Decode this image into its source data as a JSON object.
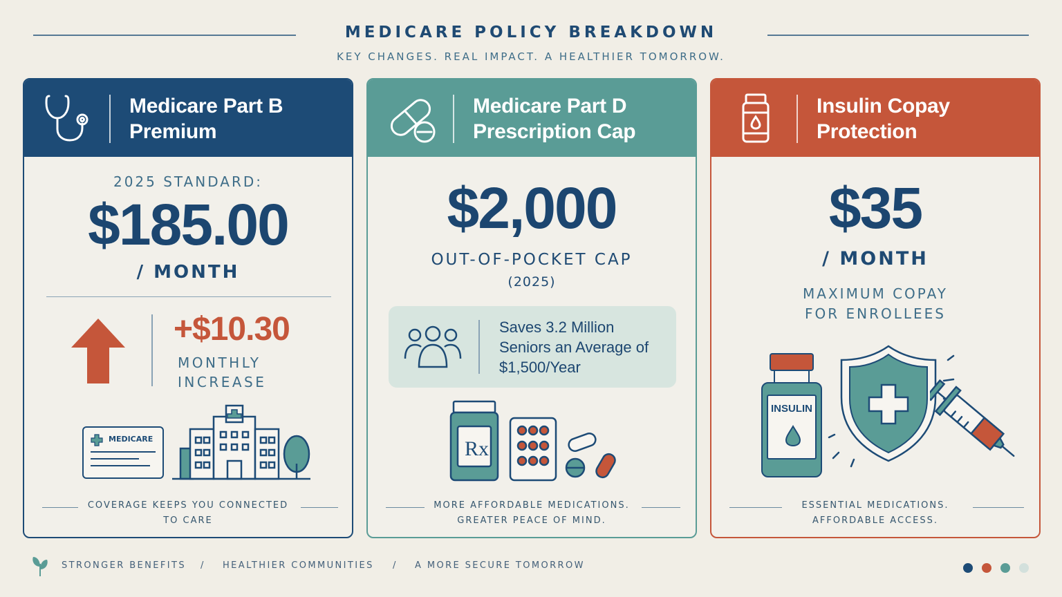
{
  "header": {
    "title": "MEDICARE POLICY BREAKDOWN",
    "subtitle": "KEY CHANGES. REAL IMPACT. A HEALTHIER TOMORROW."
  },
  "cards": [
    {
      "title_line1": "Medicare Part B",
      "title_line2": "Premium",
      "icon": "stethoscope-icon",
      "color": "#1d4b76",
      "label": "2025 STANDARD:",
      "value": "$185.00",
      "unit": "/ MONTH",
      "change_value": "+$10.30",
      "change_label_line1": "MONTHLY",
      "change_label_line2": "INCREASE",
      "card_text": "MEDICARE",
      "footer_line1": "COVERAGE KEEPS YOU CONNECTED",
      "footer_line2": "TO CARE"
    },
    {
      "title_line1": "Medicare Part D",
      "title_line2": "Prescription Cap",
      "icon": "pill-icon",
      "color": "#5a9c96",
      "value": "$2,000",
      "unit": "OUT-OF-POCKET CAP",
      "unit_line2": "(2025)",
      "info_line1": "Saves 3.2 Million",
      "info_line2": "Seniors an Average of",
      "info_line3": "$1,500/Year",
      "footer_line1": "MORE AFFORDABLE MEDICATIONS.",
      "footer_line2": "GREATER PEACE OF MIND."
    },
    {
      "title_line1": "Insulin Copay",
      "title_line2": "Protection",
      "icon": "medicine-bottle-icon",
      "color": "#c5563a",
      "value": "$35",
      "unit": "/ MONTH",
      "desc_line1": "MAXIMUM COPAY",
      "desc_line2": "FOR ENROLLEES",
      "bottle_label": "INSULIN",
      "footer_line1": "ESSENTIAL MEDICATIONS.",
      "footer_line2": "AFFORDABLE ACCESS."
    }
  ],
  "footer": {
    "items": [
      "STRONGER BENEFITS",
      "HEALTHIER COMMUNITIES",
      "A MORE SECURE TOMORROW"
    ],
    "separator": "/"
  },
  "colors": {
    "navy": "#1d4b76",
    "teal": "#5a9c96",
    "orange": "#c5563a",
    "background": "#f1eee6"
  }
}
